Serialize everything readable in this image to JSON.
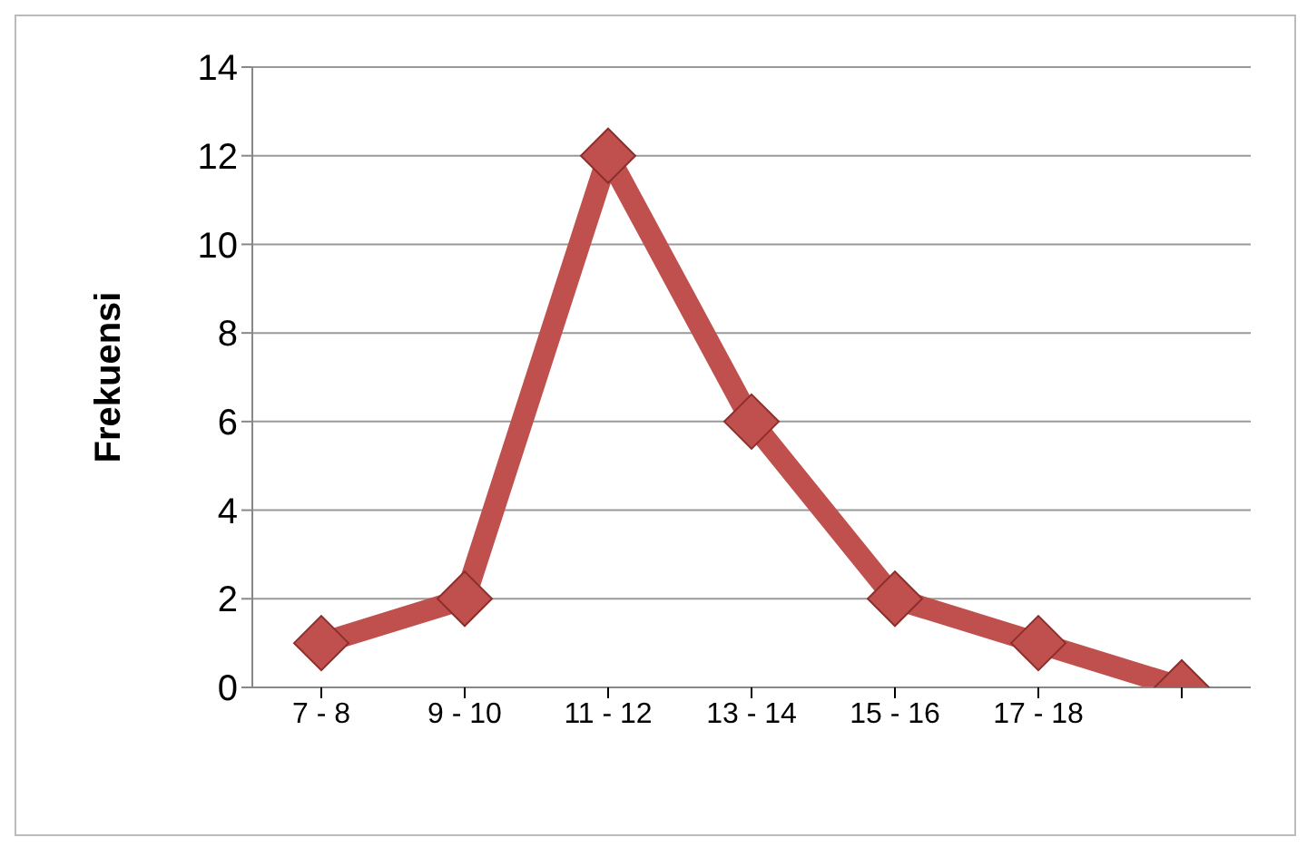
{
  "chart_data": {
    "type": "line",
    "ylabel": "Frekuensi",
    "categories": [
      "7 - 8",
      "9 - 10",
      "11 - 12",
      "13 - 14",
      "15 - 16",
      "17 - 18",
      null
    ],
    "series": [
      {
        "color": "#c0504d",
        "values": [
          1,
          2,
          12,
          6,
          2,
          1,
          0
        ]
      }
    ],
    "ylim": [
      0,
      14
    ],
    "yticks": [
      0,
      2,
      4,
      6,
      8,
      10,
      12,
      14
    ],
    "grid": "y",
    "marker": "diamond",
    "line_style": "solid"
  }
}
